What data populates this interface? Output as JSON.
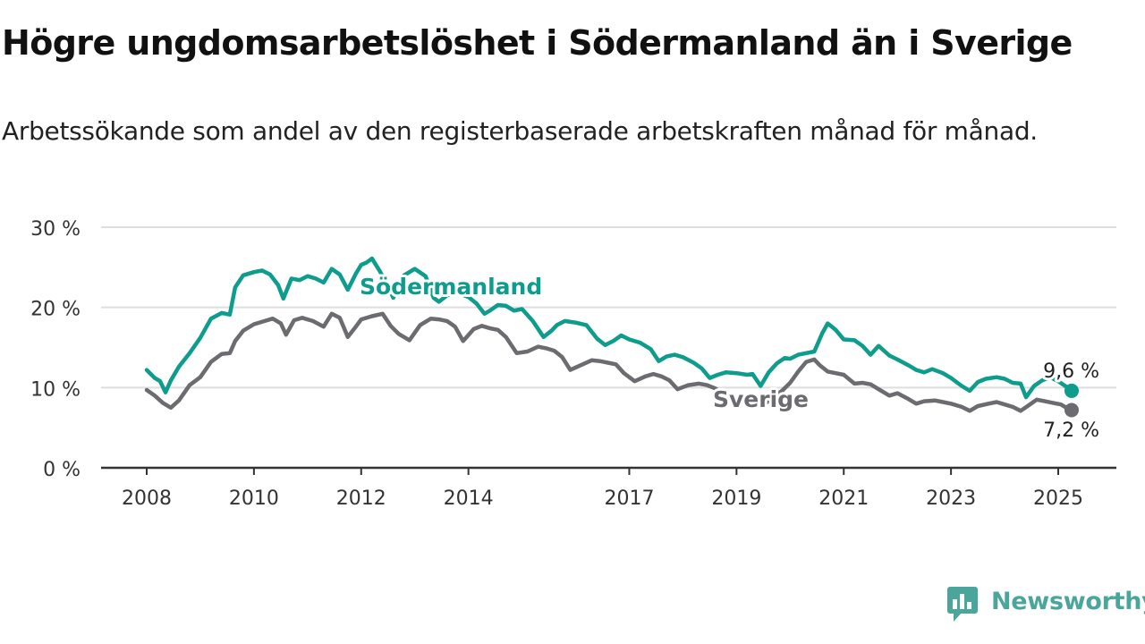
{
  "title": "Högre ungdomsarbetslöshet i Södermanland än i Sverige",
  "subtitle": "Arbetssökande som andel av den registerbaserade arbetskraften månad för månad.",
  "brand": "Newsworthy",
  "colors": {
    "sodermanland": "#0e9c8c",
    "sverige": "#6b6b70",
    "grid": "#dedede",
    "axis": "#333333",
    "brand": "#4aa59b"
  },
  "icons": {
    "logo": "newsworthy-bar-chart-logo-icon"
  },
  "chart_data": {
    "type": "line",
    "title": "Högre ungdomsarbetslöshet i Södermanland än i Sverige",
    "subtitle": "Arbetssökande som andel av den registerbaserade arbetskraften månad för månad.",
    "xlabel": "",
    "ylabel": "",
    "ylim": [
      0,
      30
    ],
    "yticks": [
      0,
      10,
      20,
      30
    ],
    "ytick_labels": [
      "0 %",
      "10 %",
      "20 %",
      "30 %"
    ],
    "xlim": [
      2007.75,
      2026.2
    ],
    "xticks": [
      2008,
      2010,
      2012,
      2014,
      2017,
      2019,
      2021,
      2023,
      2025
    ],
    "xtick_labels": [
      "2008",
      "2010",
      "2012",
      "2014",
      "2017",
      "2019",
      "2021",
      "2023",
      "2025"
    ],
    "grid": "horizontal",
    "legend": "direct labels on lines",
    "series": [
      {
        "name": "Södermanland",
        "label_position": "2012.3",
        "end_label": "9,6 %",
        "x": [
          2008.0,
          2008.15,
          2008.25,
          2008.35,
          2008.45,
          2008.6,
          2008.8,
          2009.0,
          2009.2,
          2009.4,
          2009.55,
          2009.65,
          2009.8,
          2010.0,
          2010.15,
          2010.3,
          2010.45,
          2010.55,
          2010.7,
          2010.85,
          2011.0,
          2011.15,
          2011.3,
          2011.45,
          2011.6,
          2011.75,
          2011.9,
          2012.0,
          2012.1,
          2012.2,
          2012.35,
          2012.5,
          2012.6,
          2012.8,
          2013.0,
          2013.2,
          2013.35,
          2013.45,
          2013.6,
          2013.8,
          2014.0,
          2014.15,
          2014.3,
          2014.4,
          2014.55,
          2014.7,
          2014.85,
          2015.0,
          2015.2,
          2015.4,
          2015.55,
          2015.65,
          2015.8,
          2016.0,
          2016.2,
          2016.4,
          2016.55,
          2016.7,
          2016.85,
          2017.0,
          2017.2,
          2017.4,
          2017.55,
          2017.7,
          2017.85,
          2018.0,
          2018.2,
          2018.35,
          2018.5,
          2018.65,
          2018.8,
          2019.0,
          2019.2,
          2019.3,
          2019.45,
          2019.6,
          2019.75,
          2019.9,
          2020.0,
          2020.15,
          2020.3,
          2020.45,
          2020.6,
          2020.7,
          2020.85,
          2021.0,
          2021.2,
          2021.35,
          2021.5,
          2021.65,
          2021.85,
          2022.0,
          2022.2,
          2022.35,
          2022.5,
          2022.65,
          2022.85,
          2023.0,
          2023.2,
          2023.35,
          2023.5,
          2023.65,
          2023.85,
          2024.0,
          2024.15,
          2024.3,
          2024.4,
          2024.55,
          2024.7,
          2024.85,
          2025.0,
          2025.15,
          2025.25
        ],
        "values": [
          12.2,
          11.2,
          10.8,
          9.4,
          10.9,
          12.6,
          14.3,
          16.2,
          18.6,
          19.3,
          19.1,
          22.5,
          24.0,
          24.4,
          24.6,
          24.1,
          22.8,
          21.1,
          23.6,
          23.4,
          23.9,
          23.6,
          23.1,
          24.8,
          24.1,
          22.2,
          24.2,
          25.3,
          25.6,
          26.1,
          24.5,
          22.6,
          21.2,
          24.0,
          24.8,
          23.9,
          21.2,
          20.7,
          21.5,
          21.8,
          21.3,
          20.5,
          19.2,
          19.6,
          20.3,
          20.2,
          19.6,
          19.8,
          18.3,
          16.3,
          17.1,
          17.8,
          18.3,
          18.1,
          17.8,
          16.1,
          15.3,
          15.8,
          16.5,
          16.0,
          15.6,
          14.8,
          13.3,
          13.9,
          14.1,
          13.8,
          13.1,
          12.4,
          11.2,
          11.6,
          11.9,
          11.8,
          11.6,
          11.7,
          10.2,
          11.9,
          13.0,
          13.7,
          13.6,
          14.1,
          14.3,
          14.5,
          16.8,
          18.0,
          17.2,
          16.0,
          15.9,
          15.2,
          14.1,
          15.2,
          14.0,
          13.5,
          12.8,
          12.2,
          11.9,
          12.3,
          11.8,
          11.2,
          10.2,
          9.6,
          10.7,
          11.1,
          11.3,
          11.1,
          10.6,
          10.5,
          8.8,
          10.2,
          10.9,
          11.3,
          10.8,
          10.1,
          9.6
        ]
      },
      {
        "name": "Sverige",
        "label_position": "2018.95",
        "end_label": "7,2 %",
        "x": [
          2008.0,
          2008.15,
          2008.3,
          2008.45,
          2008.6,
          2008.8,
          2009.0,
          2009.2,
          2009.4,
          2009.55,
          2009.65,
          2009.8,
          2010.0,
          2010.2,
          2010.35,
          2010.5,
          2010.6,
          2010.75,
          2010.9,
          2011.1,
          2011.3,
          2011.45,
          2011.6,
          2011.75,
          2011.9,
          2012.0,
          2012.2,
          2012.4,
          2012.55,
          2012.7,
          2012.9,
          2013.1,
          2013.3,
          2013.45,
          2013.6,
          2013.75,
          2013.9,
          2014.1,
          2014.25,
          2014.4,
          2014.55,
          2014.7,
          2014.9,
          2015.1,
          2015.3,
          2015.45,
          2015.6,
          2015.75,
          2015.9,
          2016.1,
          2016.3,
          2016.45,
          2016.6,
          2016.75,
          2016.9,
          2017.1,
          2017.3,
          2017.45,
          2017.6,
          2017.75,
          2017.9,
          2018.1,
          2018.3,
          2018.45,
          2018.6,
          2018.75,
          2018.95,
          2019.2,
          2019.4,
          2019.55,
          2019.7,
          2019.85,
          2020.0,
          2020.15,
          2020.3,
          2020.45,
          2020.55,
          2020.7,
          2020.85,
          2021.0,
          2021.2,
          2021.35,
          2021.5,
          2021.7,
          2021.85,
          2022.0,
          2022.2,
          2022.35,
          2022.5,
          2022.7,
          2022.85,
          2023.0,
          2023.2,
          2023.35,
          2023.5,
          2023.7,
          2023.85,
          2024.0,
          2024.15,
          2024.3,
          2024.45,
          2024.6,
          2024.75,
          2024.9,
          2025.05,
          2025.15,
          2025.25
        ],
        "values": [
          9.7,
          9.0,
          8.1,
          7.5,
          8.4,
          10.3,
          11.3,
          13.2,
          14.2,
          14.3,
          15.8,
          17.1,
          17.9,
          18.3,
          18.6,
          18.0,
          16.6,
          18.4,
          18.7,
          18.3,
          17.6,
          19.2,
          18.7,
          16.3,
          17.6,
          18.5,
          18.9,
          19.2,
          17.7,
          16.7,
          15.9,
          17.8,
          18.6,
          18.5,
          18.3,
          17.6,
          15.8,
          17.3,
          17.7,
          17.4,
          17.2,
          16.3,
          14.3,
          14.5,
          15.1,
          14.9,
          14.6,
          13.8,
          12.2,
          12.8,
          13.4,
          13.3,
          13.1,
          12.9,
          11.8,
          10.8,
          11.4,
          11.7,
          11.4,
          10.9,
          9.8,
          10.3,
          10.5,
          10.3,
          9.9,
          9.3,
          8.6,
          8.6,
          8.3,
          8.1,
          8.9,
          9.6,
          10.6,
          12.0,
          13.2,
          13.5,
          12.8,
          12.0,
          11.8,
          11.6,
          10.5,
          10.6,
          10.4,
          9.6,
          9.0,
          9.3,
          8.6,
          8.0,
          8.3,
          8.4,
          8.2,
          8.0,
          7.6,
          7.1,
          7.7,
          8.0,
          8.2,
          7.9,
          7.6,
          7.1,
          7.8,
          8.5,
          8.3,
          8.1,
          7.9,
          7.5,
          7.2
        ]
      }
    ]
  }
}
